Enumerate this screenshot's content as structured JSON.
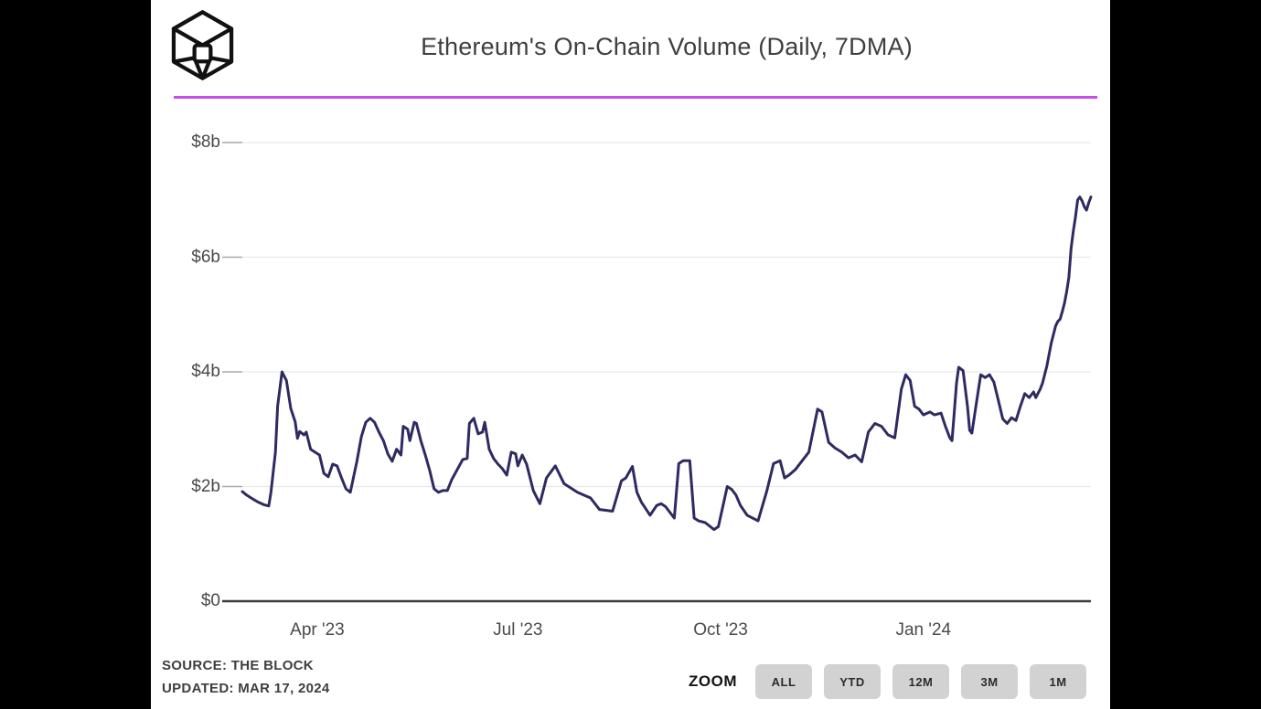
{
  "header": {
    "title": "Ethereum's On-Chain Volume (Daily, 7DMA)",
    "logo_name": "the-block-logo",
    "accent_rule_color": "#c94ce8"
  },
  "footer": {
    "source_line1": "SOURCE: THE BLOCK",
    "source_line2": "UPDATED: MAR 17, 2024",
    "zoom_label": "ZOOM",
    "zoom_buttons": [
      {
        "label": "ALL"
      },
      {
        "label": "YTD"
      },
      {
        "label": "12M"
      },
      {
        "label": "3M"
      },
      {
        "label": "1M"
      }
    ]
  },
  "colors": {
    "line": "#2e2a62",
    "accent_rule": "#c94ce8",
    "grid": "#e9e9e9",
    "tick": "#a9a9a9",
    "axis": "#3a3a3a",
    "button_bg": "#d2d2d2"
  },
  "chart_data": {
    "type": "line",
    "title": "Ethereum's On-Chain Volume (Daily, 7DMA)",
    "series_name": "Ethereum on-chain volume, 7-day moving average ($ billions)",
    "ylim": [
      0,
      8
    ],
    "grid": "horizontal",
    "legend": "none",
    "y_ticks": [
      {
        "label": "$0",
        "value": 0
      },
      {
        "label": "$2b",
        "value": 2
      },
      {
        "label": "$4b",
        "value": 4
      },
      {
        "label": "$6b",
        "value": 6
      },
      {
        "label": "$8b",
        "value": 8
      }
    ],
    "x_domain_days": [
      0,
      385
    ],
    "x_ticks": [
      {
        "label": "Apr '23",
        "day": 34
      },
      {
        "label": "Jul '23",
        "day": 125
      },
      {
        "label": "Oct '23",
        "day": 217
      },
      {
        "label": "Jan '24",
        "day": 309
      }
    ],
    "points": [
      [
        0,
        1.91
      ],
      [
        2,
        1.85
      ],
      [
        4,
        1.8
      ],
      [
        7,
        1.73
      ],
      [
        10,
        1.68
      ],
      [
        12,
        1.66
      ],
      [
        13,
        1.9
      ],
      [
        15,
        2.6
      ],
      [
        16,
        3.4
      ],
      [
        18,
        4.0
      ],
      [
        20,
        3.85
      ],
      [
        22,
        3.36
      ],
      [
        24,
        3.13
      ],
      [
        25,
        2.84
      ],
      [
        26,
        2.96
      ],
      [
        28,
        2.9
      ],
      [
        29,
        2.95
      ],
      [
        31,
        2.65
      ],
      [
        33,
        2.6
      ],
      [
        35,
        2.55
      ],
      [
        37,
        2.23
      ],
      [
        39,
        2.17
      ],
      [
        41,
        2.39
      ],
      [
        43,
        2.36
      ],
      [
        45,
        2.15
      ],
      [
        47,
        1.96
      ],
      [
        49,
        1.9
      ],
      [
        52,
        2.44
      ],
      [
        54,
        2.87
      ],
      [
        56,
        3.12
      ],
      [
        58,
        3.19
      ],
      [
        60,
        3.12
      ],
      [
        62,
        2.95
      ],
      [
        64,
        2.8
      ],
      [
        66,
        2.57
      ],
      [
        68,
        2.44
      ],
      [
        70,
        2.65
      ],
      [
        72,
        2.55
      ],
      [
        73,
        3.05
      ],
      [
        75,
        3.0
      ],
      [
        76,
        2.8
      ],
      [
        78,
        3.12
      ],
      [
        79,
        3.1
      ],
      [
        81,
        2.8
      ],
      [
        83,
        2.55
      ],
      [
        85,
        2.28
      ],
      [
        87,
        1.96
      ],
      [
        89,
        1.9
      ],
      [
        91,
        1.93
      ],
      [
        93,
        1.93
      ],
      [
        95,
        2.12
      ],
      [
        100,
        2.47
      ],
      [
        102,
        2.49
      ],
      [
        103,
        3.1
      ],
      [
        105,
        3.19
      ],
      [
        107,
        2.92
      ],
      [
        109,
        2.95
      ],
      [
        110,
        3.12
      ],
      [
        112,
        2.65
      ],
      [
        114,
        2.49
      ],
      [
        116,
        2.39
      ],
      [
        118,
        2.31
      ],
      [
        120,
        2.2
      ],
      [
        122,
        2.6
      ],
      [
        124,
        2.57
      ],
      [
        125,
        2.36
      ],
      [
        127,
        2.55
      ],
      [
        129,
        2.39
      ],
      [
        132,
        1.93
      ],
      [
        135,
        1.7
      ],
      [
        138,
        2.15
      ],
      [
        142,
        2.36
      ],
      [
        146,
        2.05
      ],
      [
        148,
        2.0
      ],
      [
        152,
        1.9
      ],
      [
        158,
        1.8
      ],
      [
        162,
        1.6
      ],
      [
        166,
        1.58
      ],
      [
        168,
        1.57
      ],
      [
        172,
        2.1
      ],
      [
        174,
        2.15
      ],
      [
        177,
        2.35
      ],
      [
        179,
        1.9
      ],
      [
        181,
        1.73
      ],
      [
        185,
        1.5
      ],
      [
        188,
        1.67
      ],
      [
        190,
        1.7
      ],
      [
        192,
        1.65
      ],
      [
        196,
        1.45
      ],
      [
        198,
        2.4
      ],
      [
        200,
        2.45
      ],
      [
        203,
        2.45
      ],
      [
        205,
        1.45
      ],
      [
        207,
        1.4
      ],
      [
        210,
        1.37
      ],
      [
        214,
        1.25
      ],
      [
        216,
        1.3
      ],
      [
        220,
        2.0
      ],
      [
        222,
        1.95
      ],
      [
        224,
        1.85
      ],
      [
        226,
        1.67
      ],
      [
        229,
        1.5
      ],
      [
        234,
        1.4
      ],
      [
        238,
        1.93
      ],
      [
        241,
        2.4
      ],
      [
        244,
        2.45
      ],
      [
        246,
        2.15
      ],
      [
        248,
        2.2
      ],
      [
        251,
        2.3
      ],
      [
        254,
        2.45
      ],
      [
        257,
        2.6
      ],
      [
        261,
        3.35
      ],
      [
        263,
        3.3
      ],
      [
        266,
        2.77
      ],
      [
        269,
        2.67
      ],
      [
        272,
        2.6
      ],
      [
        275,
        2.5
      ],
      [
        278,
        2.55
      ],
      [
        281,
        2.43
      ],
      [
        284,
        2.95
      ],
      [
        287,
        3.1
      ],
      [
        290,
        3.05
      ],
      [
        293,
        2.9
      ],
      [
        296,
        2.85
      ],
      [
        299,
        3.7
      ],
      [
        301,
        3.95
      ],
      [
        303,
        3.85
      ],
      [
        305,
        3.4
      ],
      [
        307,
        3.35
      ],
      [
        309,
        3.25
      ],
      [
        312,
        3.3
      ],
      [
        314,
        3.25
      ],
      [
        317,
        3.28
      ],
      [
        319,
        3.05
      ],
      [
        321,
        2.85
      ],
      [
        322,
        2.8
      ],
      [
        323,
        3.3
      ],
      [
        324,
        3.8
      ],
      [
        325,
        4.08
      ],
      [
        327,
        4.02
      ],
      [
        329,
        3.4
      ],
      [
        330,
        2.98
      ],
      [
        331,
        2.93
      ],
      [
        333,
        3.45
      ],
      [
        335,
        3.95
      ],
      [
        337,
        3.9
      ],
      [
        339,
        3.95
      ],
      [
        341,
        3.82
      ],
      [
        343,
        3.5
      ],
      [
        345,
        3.18
      ],
      [
        347,
        3.1
      ],
      [
        349,
        3.2
      ],
      [
        351,
        3.15
      ],
      [
        353,
        3.4
      ],
      [
        355,
        3.62
      ],
      [
        357,
        3.55
      ],
      [
        359,
        3.65
      ],
      [
        360,
        3.55
      ],
      [
        362,
        3.7
      ],
      [
        363,
        3.8
      ],
      [
        364,
        3.95
      ],
      [
        365,
        4.1
      ],
      [
        366,
        4.3
      ],
      [
        367,
        4.5
      ],
      [
        368,
        4.65
      ],
      [
        369,
        4.8
      ],
      [
        370,
        4.88
      ],
      [
        371,
        4.92
      ],
      [
        372,
        5.05
      ],
      [
        373,
        5.2
      ],
      [
        374,
        5.4
      ],
      [
        375,
        5.65
      ],
      [
        376,
        6.15
      ],
      [
        377,
        6.45
      ],
      [
        378,
        6.7
      ],
      [
        379,
        7.0
      ],
      [
        380,
        7.05
      ],
      [
        381,
        6.98
      ],
      [
        382,
        6.88
      ],
      [
        383,
        6.82
      ],
      [
        384,
        6.95
      ],
      [
        385,
        7.05
      ]
    ]
  }
}
